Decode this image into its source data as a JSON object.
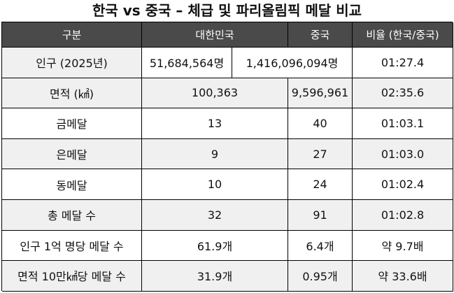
{
  "title": "한국 vs 중국 – 체급 및 파리올림픽 메달 비교",
  "headers": {
    "col1": "구분",
    "col2": "대한민국",
    "col3": "중국",
    "col4": "비율 (한국/중국)"
  },
  "rows": [
    {
      "label": "인구 (2025년)",
      "korea": "51,684,564명",
      "china": "1,416,096,094명",
      "ratio": "01:27.4"
    },
    {
      "label": "면적 (㎢)",
      "korea": "100,363",
      "china": "9,596,961",
      "ratio": "02:35.6"
    },
    {
      "label": "금메달",
      "korea": "13",
      "china": "40",
      "ratio": "01:03.1"
    },
    {
      "label": "은메달",
      "korea": "9",
      "china": "27",
      "ratio": "01:03.0"
    },
    {
      "label": "동메달",
      "korea": "10",
      "china": "24",
      "ratio": "01:02.4"
    },
    {
      "label": "총 메달 수",
      "korea": "32",
      "china": "91",
      "ratio": "01:02.8"
    },
    {
      "label": "인구 1억 명당 메달 수",
      "korea": "61.9개",
      "china": "6.4개",
      "ratio": "약 9.7배"
    },
    {
      "label": "면적 10만㎢당 메달 수",
      "korea": "31.9개",
      "china": "0.95개",
      "ratio": "약 33.6배"
    }
  ]
}
